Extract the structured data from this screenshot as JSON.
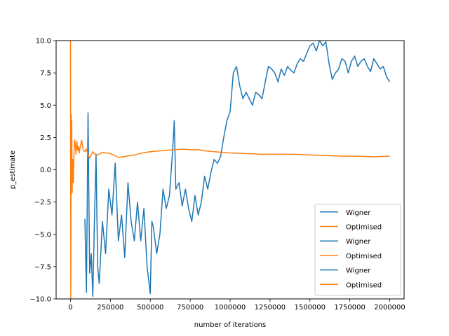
{
  "chart_data": {
    "type": "line",
    "title": "",
    "xlabel": "number of iterations",
    "ylabel": "p_estimate",
    "xlim": [
      -90000,
      2090000
    ],
    "ylim": [
      -10.0,
      10.0
    ],
    "xticks": [
      0,
      250000,
      500000,
      750000,
      1000000,
      1250000,
      1500000,
      1750000,
      2000000
    ],
    "xtick_labels": [
      "0",
      "250000",
      "500000",
      "750000",
      "1000000",
      "1250000",
      "1500000",
      "1750000",
      "2000000"
    ],
    "yticks": [
      -10.0,
      -7.5,
      -5.0,
      -2.5,
      0.0,
      2.5,
      5.0,
      7.5,
      10.0
    ],
    "ytick_labels": [
      "−10.0",
      "−7.5",
      "−5.0",
      "−2.5",
      "0.0",
      "2.5",
      "5.0",
      "7.5",
      "10.0"
    ],
    "grid": false,
    "legend_position": "lower-right",
    "legend": [
      "Wigner",
      "Optimised",
      "Wigner",
      "Optimised",
      "Wigner",
      "Optimised"
    ],
    "series": [
      {
        "name": "Wigner",
        "color": "#1f77b4",
        "x": [
          90000,
          100000,
          110000,
          120000,
          130000,
          140000,
          150000,
          160000,
          170000,
          180000,
          200000,
          220000,
          240000,
          260000,
          280000,
          300000,
          320000,
          340000,
          360000,
          380000,
          400000,
          420000,
          440000,
          460000,
          480000,
          500000,
          510000,
          520000,
          540000,
          560000,
          580000,
          600000,
          620000,
          640000,
          650000,
          660000,
          680000,
          700000,
          720000,
          740000,
          760000,
          780000,
          800000,
          820000,
          840000,
          860000,
          880000,
          900000,
          920000,
          940000,
          960000,
          980000,
          1000000,
          1020000,
          1040000,
          1060000,
          1080000,
          1100000,
          1120000,
          1140000,
          1160000,
          1180000,
          1200000,
          1220000,
          1240000,
          1260000,
          1280000,
          1300000,
          1320000,
          1340000,
          1360000,
          1380000,
          1400000,
          1420000,
          1440000,
          1460000,
          1480000,
          1500000,
          1520000,
          1540000,
          1560000,
          1580000,
          1600000,
          1620000,
          1640000,
          1660000,
          1680000,
          1700000,
          1720000,
          1740000,
          1760000,
          1780000,
          1800000,
          1820000,
          1840000,
          1860000,
          1880000,
          1900000,
          1920000,
          1940000,
          1960000,
          1980000,
          2000000
        ],
        "y": [
          -3.8,
          -9.5,
          4.4,
          -8.0,
          -6.5,
          -9.8,
          -4.0,
          1.2,
          -7.5,
          -8.8,
          -4.0,
          -6.5,
          -1.5,
          -3.5,
          0.5,
          -5.5,
          -3.5,
          -6.8,
          -1.0,
          -4.0,
          -5.5,
          -2.5,
          -5.5,
          -3.0,
          -7.5,
          -9.6,
          -4.0,
          -4.5,
          -6.5,
          -5.0,
          -1.5,
          -3.0,
          -2.0,
          1.5,
          3.8,
          -1.5,
          -1.0,
          -2.8,
          -1.5,
          -3.0,
          -4.0,
          -2.0,
          -3.5,
          -2.5,
          -0.5,
          -1.5,
          -0.2,
          0.8,
          0.5,
          1.0,
          2.5,
          3.8,
          4.5,
          7.5,
          8.0,
          6.5,
          5.5,
          6.0,
          5.5,
          5.0,
          6.0,
          5.8,
          5.5,
          6.8,
          8.0,
          7.8,
          7.5,
          6.8,
          7.8,
          7.3,
          8.0,
          7.7,
          7.5,
          8.2,
          8.6,
          8.4,
          9.0,
          9.6,
          9.8,
          9.2,
          10.0,
          9.6,
          9.9,
          8.2,
          7.0,
          7.5,
          7.8,
          8.6,
          8.4,
          7.5,
          8.4,
          8.8,
          8.0,
          8.4,
          8.6,
          8.0,
          7.6,
          8.6,
          8.2,
          7.8,
          8.0,
          7.2,
          6.8
        ]
      },
      {
        "name": "Optimised",
        "color": "#ff7f0e",
        "x": [
          0,
          2000,
          4000,
          6000,
          8000,
          10000,
          14000,
          18000,
          22000,
          26000,
          30000,
          35000,
          40000,
          45000,
          50000,
          55000,
          60000,
          70000,
          80000,
          90000,
          100000,
          110000,
          120000,
          140000,
          160000,
          180000,
          200000,
          250000,
          300000,
          350000,
          400000,
          450000,
          500000,
          550000,
          600000,
          650000,
          700000,
          750000,
          800000,
          850000,
          900000,
          950000,
          1000000,
          1100000,
          1200000,
          1300000,
          1400000,
          1500000,
          1600000,
          1700000,
          1800000,
          1900000,
          2000000
        ],
        "y": [
          10.0,
          -10.0,
          4.3,
          0.5,
          3.8,
          -1.8,
          0.8,
          -1.0,
          1.5,
          2.3,
          2.0,
          1.2,
          2.2,
          1.5,
          1.8,
          1.3,
          1.7,
          2.3,
          1.5,
          1.4,
          1.6,
          1.2,
          0.9,
          1.4,
          1.1,
          1.2,
          1.35,
          1.25,
          0.95,
          1.05,
          1.15,
          1.3,
          1.4,
          1.45,
          1.5,
          1.55,
          1.6,
          1.55,
          1.55,
          1.45,
          1.4,
          1.35,
          1.3,
          1.25,
          1.2,
          1.2,
          1.2,
          1.15,
          1.1,
          1.05,
          1.05,
          1.0,
          1.05
        ]
      }
    ]
  }
}
